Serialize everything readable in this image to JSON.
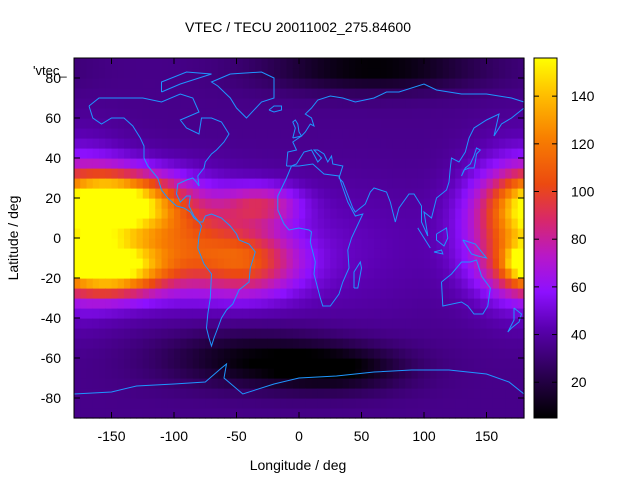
{
  "chart_data": {
    "type": "heatmap",
    "title": "VTEC / TECU 20011002_275.84600",
    "xlabel": "Longitude / deg",
    "ylabel": "Latitude / deg",
    "legend_key": "'vtec_",
    "xlim": [
      -180,
      180
    ],
    "ylim": [
      -90,
      90
    ],
    "x_ticks": [
      -150,
      -100,
      -50,
      0,
      50,
      100,
      150
    ],
    "y_ticks": [
      -80,
      -60,
      -40,
      -20,
      0,
      20,
      40,
      60,
      80
    ],
    "colorbar": {
      "range": [
        5,
        156
      ],
      "ticks": [
        20,
        40,
        60,
        80,
        100,
        120,
        140
      ],
      "stops": [
        {
          "v": 0.0,
          "color": "#000000"
        },
        {
          "v": 0.12,
          "color": "#2a0050"
        },
        {
          "v": 0.25,
          "color": "#5a00b0"
        },
        {
          "v": 0.35,
          "color": "#8d10ff"
        },
        {
          "v": 0.45,
          "color": "#b818c8"
        },
        {
          "v": 0.55,
          "color": "#d8286a"
        },
        {
          "v": 0.65,
          "color": "#ec4a10"
        },
        {
          "v": 0.78,
          "color": "#f88000"
        },
        {
          "v": 0.9,
          "color": "#ffc000"
        },
        {
          "v": 1.0,
          "color": "#ffff00"
        }
      ]
    },
    "grid": false,
    "lon_step": 5,
    "lat_step": 5,
    "field": {
      "background": 35,
      "features": [
        {
          "lon": -145,
          "lat": 18,
          "amp": 105,
          "slon": 32,
          "slat": 10
        },
        {
          "lon": -150,
          "lat": -15,
          "amp": 95,
          "slon": 30,
          "slat": 9
        },
        {
          "lon": -100,
          "lat": 0,
          "amp": 60,
          "slon": 40,
          "slat": 18
        },
        {
          "lon": -40,
          "lat": -12,
          "amp": 55,
          "slon": 30,
          "slat": 12
        },
        {
          "lon": -30,
          "lat": 17,
          "amp": 40,
          "slon": 22,
          "slat": 7
        },
        {
          "lon": 180,
          "lat": 5,
          "amp": 80,
          "slon": 30,
          "slat": 22
        },
        {
          "lon": 178,
          "lat": -12,
          "amp": 40,
          "slon": 8,
          "slat": 5
        },
        {
          "lon": 30,
          "lat": -5,
          "amp": 10,
          "slon": 60,
          "slat": 25
        },
        {
          "lon": 60,
          "lat": 85,
          "amp": -30,
          "slon": 60,
          "slat": 8
        },
        {
          "lon": -40,
          "lat": -60,
          "amp": -25,
          "slon": 50,
          "slat": 10
        },
        {
          "lon": 30,
          "lat": -65,
          "amp": -28,
          "slon": 40,
          "slat": 8
        }
      ]
    },
    "coastlines": [
      [
        [
          -168,
          66
        ],
        [
          -160,
          70
        ],
        [
          -140,
          70
        ],
        [
          -125,
          70
        ],
        [
          -110,
          68
        ],
        [
          -95,
          72
        ],
        [
          -85,
          70
        ],
        [
          -80,
          63
        ],
        [
          -95,
          59
        ],
        [
          -90,
          55
        ],
        [
          -80,
          52
        ],
        [
          -78,
          60
        ],
        [
          -70,
          60
        ],
        [
          -62,
          58
        ],
        [
          -56,
          52
        ],
        [
          -60,
          48
        ],
        [
          -66,
          44
        ],
        [
          -70,
          42
        ],
        [
          -75,
          38
        ],
        [
          -76,
          35
        ],
        [
          -81,
          31
        ],
        [
          -80,
          26
        ],
        [
          -82,
          28
        ],
        [
          -85,
          30
        ],
        [
          -90,
          29
        ],
        [
          -97,
          27
        ],
        [
          -98,
          22
        ],
        [
          -95,
          18
        ],
        [
          -90,
          21
        ],
        [
          -87,
          21
        ],
        [
          -88,
          16
        ],
        [
          -84,
          11
        ],
        [
          -80,
          8
        ],
        [
          -77,
          8
        ],
        [
          -75,
          11
        ],
        [
          -70,
          12
        ],
        [
          -62,
          10
        ],
        [
          -55,
          6
        ],
        [
          -50,
          2
        ],
        [
          -48,
          -1
        ],
        [
          -40,
          -3
        ],
        [
          -35,
          -7
        ],
        [
          -39,
          -15
        ],
        [
          -40,
          -22
        ],
        [
          -48,
          -26
        ],
        [
          -53,
          -33
        ],
        [
          -58,
          -36
        ],
        [
          -62,
          -40
        ],
        [
          -65,
          -45
        ],
        [
          -68,
          -50
        ],
        [
          -70,
          -54
        ],
        [
          -72,
          -50
        ],
        [
          -74,
          -45
        ],
        [
          -73,
          -38
        ],
        [
          -71,
          -30
        ],
        [
          -70,
          -18
        ],
        [
          -76,
          -13
        ],
        [
          -81,
          -5
        ],
        [
          -80,
          1
        ],
        [
          -78,
          6
        ],
        [
          -80,
          8
        ],
        [
          -84,
          10
        ],
        [
          -87,
          13
        ],
        [
          -92,
          15
        ],
        [
          -98,
          16
        ],
        [
          -105,
          20
        ],
        [
          -110,
          24
        ],
        [
          -113,
          30
        ],
        [
          -117,
          33
        ],
        [
          -121,
          36
        ],
        [
          -124,
          40
        ],
        [
          -124,
          46
        ],
        [
          -127,
          50
        ],
        [
          -133,
          56
        ],
        [
          -140,
          60
        ],
        [
          -150,
          60
        ],
        [
          -158,
          57
        ],
        [
          -165,
          60
        ],
        [
          -168,
          66
        ]
      ],
      [
        [
          -55,
          82
        ],
        [
          -30,
          83
        ],
        [
          -20,
          80
        ],
        [
          -20,
          70
        ],
        [
          -30,
          68
        ],
        [
          -42,
          60
        ],
        [
          -50,
          65
        ],
        [
          -55,
          70
        ],
        [
          -65,
          76
        ],
        [
          -70,
          78
        ],
        [
          -55,
          82
        ]
      ],
      [
        [
          -10,
          36
        ],
        [
          -9,
          43
        ],
        [
          -2,
          44
        ],
        [
          -5,
          48
        ],
        [
          2,
          51
        ],
        [
          5,
          53
        ],
        [
          9,
          57
        ],
        [
          12,
          56
        ],
        [
          10,
          60
        ],
        [
          5,
          62
        ],
        [
          10,
          65
        ],
        [
          15,
          69
        ],
        [
          25,
          71
        ],
        [
          35,
          70
        ],
        [
          45,
          68
        ],
        [
          60,
          70
        ],
        [
          70,
          73
        ],
        [
          80,
          73
        ],
        [
          100,
          77
        ],
        [
          110,
          74
        ],
        [
          130,
          72
        ],
        [
          150,
          72
        ],
        [
          170,
          70
        ],
        [
          180,
          68
        ],
        [
          180,
          65
        ],
        [
          170,
          60
        ],
        [
          162,
          57
        ],
        [
          156,
          51
        ],
        [
          160,
          62
        ],
        [
          150,
          59
        ],
        [
          140,
          55
        ],
        [
          136,
          50
        ],
        [
          133,
          43
        ],
        [
          128,
          38
        ],
        [
          122,
          40
        ],
        [
          121,
          35
        ],
        [
          120,
          28
        ],
        [
          118,
          24
        ],
        [
          110,
          20
        ],
        [
          106,
          10
        ],
        [
          100,
          13
        ],
        [
          103,
          1
        ],
        [
          98,
          8
        ],
        [
          98,
          16
        ],
        [
          92,
          22
        ],
        [
          88,
          22
        ],
        [
          80,
          15
        ],
        [
          77,
          8
        ],
        [
          73,
          18
        ],
        [
          70,
          23
        ],
        [
          60,
          25
        ],
        [
          57,
          23
        ],
        [
          53,
          17
        ],
        [
          45,
          13
        ],
        [
          43,
          15
        ],
        [
          35,
          28
        ],
        [
          32,
          30
        ],
        [
          35,
          36
        ],
        [
          27,
          37
        ],
        [
          26,
          41
        ],
        [
          23,
          38
        ],
        [
          20,
          42
        ],
        [
          15,
          44
        ],
        [
          12,
          44
        ],
        [
          18,
          40
        ],
        [
          15,
          38
        ],
        [
          10,
          44
        ],
        [
          4,
          43
        ],
        [
          -2,
          37
        ],
        [
          -6,
          36
        ],
        [
          -10,
          36
        ]
      ],
      [
        [
          -6,
          36
        ],
        [
          -10,
          30
        ],
        [
          -17,
          21
        ],
        [
          -17,
          14
        ],
        [
          -12,
          7
        ],
        [
          -8,
          4
        ],
        [
          0,
          5
        ],
        [
          8,
          4
        ],
        [
          10,
          3
        ],
        [
          9,
          -2
        ],
        [
          13,
          -12
        ],
        [
          12,
          -18
        ],
        [
          17,
          -30
        ],
        [
          19,
          -34
        ],
        [
          25,
          -34
        ],
        [
          32,
          -28
        ],
        [
          35,
          -22
        ],
        [
          40,
          -15
        ],
        [
          39,
          -6
        ],
        [
          42,
          0
        ],
        [
          51,
          12
        ],
        [
          45,
          11
        ],
        [
          39,
          18
        ],
        [
          34,
          27
        ],
        [
          32,
          31
        ],
        [
          20,
          32
        ],
        [
          11,
          37
        ],
        [
          0,
          36
        ],
        [
          -6,
          36
        ]
      ],
      [
        [
          44,
          -25
        ],
        [
          47,
          -25
        ],
        [
          50,
          -15
        ],
        [
          49,
          -12
        ],
        [
          44,
          -17
        ],
        [
          44,
          -25
        ]
      ],
      [
        [
          114,
          -22
        ],
        [
          122,
          -18
        ],
        [
          130,
          -12
        ],
        [
          137,
          -12
        ],
        [
          142,
          -11
        ],
        [
          146,
          -19
        ],
        [
          153,
          -25
        ],
        [
          151,
          -34
        ],
        [
          147,
          -38
        ],
        [
          140,
          -38
        ],
        [
          135,
          -34
        ],
        [
          130,
          -32
        ],
        [
          115,
          -34
        ],
        [
          114,
          -22
        ]
      ],
      [
        [
          -180,
          -78
        ],
        [
          -150,
          -77
        ],
        [
          -130,
          -74
        ],
        [
          -100,
          -73
        ],
        [
          -75,
          -72
        ],
        [
          -62,
          -65
        ],
        [
          -58,
          -63
        ],
        [
          -60,
          -70
        ],
        [
          -45,
          -78
        ],
        [
          -20,
          -73
        ],
        [
          0,
          -70
        ],
        [
          30,
          -69
        ],
        [
          60,
          -67
        ],
        [
          90,
          -66
        ],
        [
          120,
          -66
        ],
        [
          150,
          -68
        ],
        [
          168,
          -72
        ],
        [
          180,
          -78
        ]
      ],
      [
        [
          172,
          -35
        ],
        [
          178,
          -38
        ],
        [
          176,
          -42
        ],
        [
          170,
          -45
        ],
        [
          167,
          -47
        ],
        [
          172,
          -41
        ],
        [
          172,
          -35
        ]
      ],
      [
        [
          130,
          31
        ],
        [
          132,
          34
        ],
        [
          136,
          35
        ],
        [
          140,
          35
        ],
        [
          141,
          38
        ],
        [
          142,
          42
        ],
        [
          145,
          44
        ],
        [
          142,
          45
        ],
        [
          140,
          41
        ],
        [
          137,
          37
        ],
        [
          133,
          35
        ],
        [
          130,
          31
        ]
      ],
      [
        [
          -5,
          50
        ],
        [
          -3,
          55
        ],
        [
          -5,
          58
        ],
        [
          -3,
          59
        ],
        [
          -1,
          57
        ],
        [
          0,
          53
        ],
        [
          2,
          51
        ],
        [
          -5,
          50
        ]
      ],
      [
        [
          -24,
          64
        ],
        [
          -20,
          66
        ],
        [
          -14,
          66
        ],
        [
          -14,
          64
        ],
        [
          -20,
          63
        ],
        [
          -24,
          64
        ]
      ],
      [
        [
          95,
          5
        ],
        [
          100,
          0
        ],
        [
          105,
          -5
        ],
        [
          103,
          -3
        ],
        [
          96,
          4
        ],
        [
          95,
          5
        ]
      ],
      [
        [
          108,
          -7
        ],
        [
          115,
          -8
        ],
        [
          114,
          -6
        ],
        [
          108,
          -7
        ]
      ],
      [
        [
          110,
          2
        ],
        [
          118,
          5
        ],
        [
          119,
          0
        ],
        [
          116,
          -4
        ],
        [
          110,
          -1
        ],
        [
          110,
          2
        ]
      ],
      [
        [
          131,
          -1
        ],
        [
          141,
          -3
        ],
        [
          150,
          -10
        ],
        [
          143,
          -9
        ],
        [
          138,
          -8
        ],
        [
          131,
          -1
        ]
      ],
      [
        [
          -110,
          73
        ],
        [
          -95,
          77
        ],
        [
          -80,
          80
        ],
        [
          -70,
          82
        ],
        [
          -90,
          83
        ],
        [
          -110,
          78
        ],
        [
          -110,
          73
        ]
      ]
    ]
  }
}
